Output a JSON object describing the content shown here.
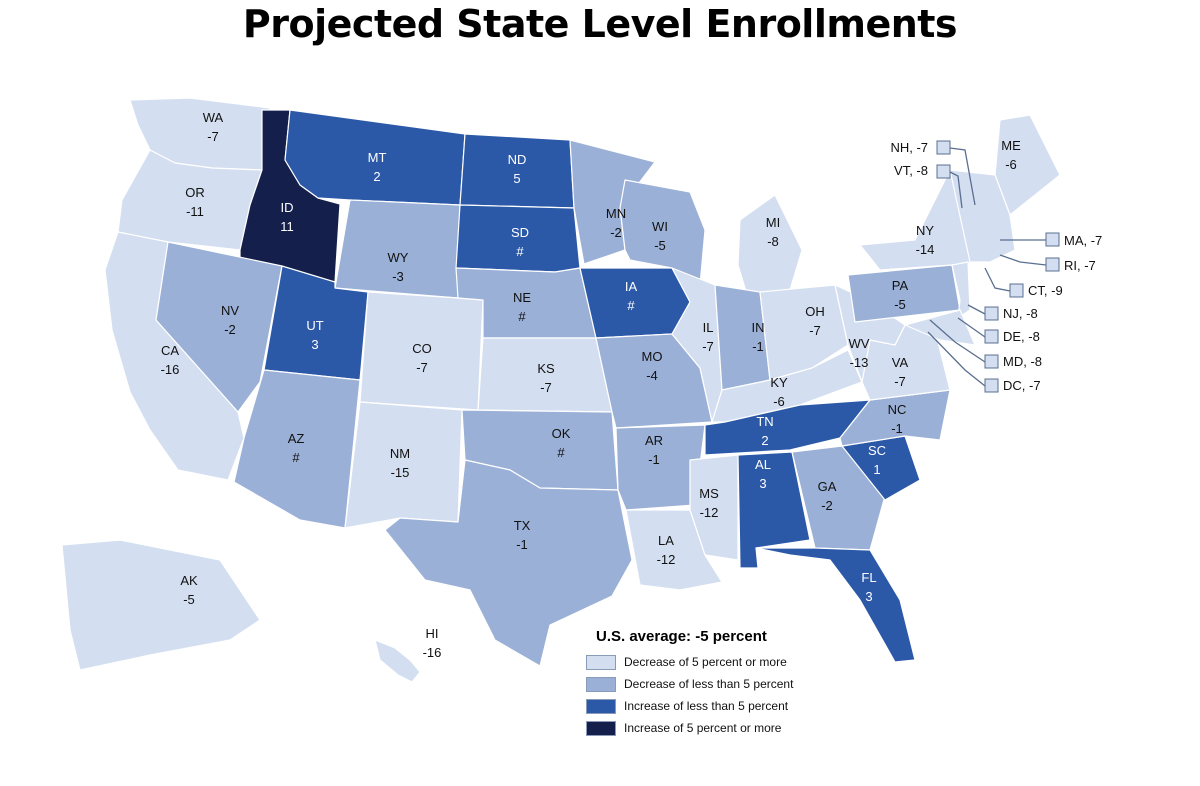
{
  "title": "Projected State Level Enrollments",
  "colors": {
    "dec5plus": "#d3def0",
    "dec_less5": "#9ab0d7",
    "inc_less5": "#2b59a8",
    "inc5plus": "#141f4b"
  },
  "legend": {
    "title": "U.S. average: -5 percent",
    "items": [
      {
        "key": "dec5plus",
        "label": "Decrease of 5 percent or more"
      },
      {
        "key": "dec_less5",
        "label": "Decrease of less than 5 percent"
      },
      {
        "key": "inc_less5",
        "label": "Increase of less than 5 percent"
      },
      {
        "key": "inc5plus",
        "label": "Increase of 5 percent or more"
      }
    ]
  },
  "states": [
    {
      "abbr": "WA",
      "value": "-7",
      "category": "dec5plus"
    },
    {
      "abbr": "OR",
      "value": "-11",
      "category": "dec5plus"
    },
    {
      "abbr": "CA",
      "value": "-16",
      "category": "dec5plus"
    },
    {
      "abbr": "ID",
      "value": "11",
      "category": "inc5plus"
    },
    {
      "abbr": "NV",
      "value": "-2",
      "category": "dec_less5"
    },
    {
      "abbr": "MT",
      "value": "2",
      "category": "inc_less5"
    },
    {
      "abbr": "WY",
      "value": "-3",
      "category": "dec_less5"
    },
    {
      "abbr": "UT",
      "value": "3",
      "category": "inc_less5"
    },
    {
      "abbr": "AZ",
      "value": "#",
      "category": "dec_less5"
    },
    {
      "abbr": "CO",
      "value": "-7",
      "category": "dec5plus"
    },
    {
      "abbr": "NM",
      "value": "-15",
      "category": "dec5plus"
    },
    {
      "abbr": "ND",
      "value": "5",
      "category": "inc_less5"
    },
    {
      "abbr": "SD",
      "value": "#",
      "category": "inc_less5"
    },
    {
      "abbr": "NE",
      "value": "#",
      "category": "dec_less5"
    },
    {
      "abbr": "KS",
      "value": "-7",
      "category": "dec5plus"
    },
    {
      "abbr": "OK",
      "value": "#",
      "category": "dec_less5"
    },
    {
      "abbr": "TX",
      "value": "-1",
      "category": "dec_less5"
    },
    {
      "abbr": "MN",
      "value": "-2",
      "category": "dec_less5"
    },
    {
      "abbr": "IA",
      "value": "#",
      "category": "inc_less5"
    },
    {
      "abbr": "MO",
      "value": "-4",
      "category": "dec_less5"
    },
    {
      "abbr": "AR",
      "value": "-1",
      "category": "dec_less5"
    },
    {
      "abbr": "LA",
      "value": "-12",
      "category": "dec5plus"
    },
    {
      "abbr": "WI",
      "value": "-5",
      "category": "dec_less5"
    },
    {
      "abbr": "IL",
      "value": "-7",
      "category": "dec5plus"
    },
    {
      "abbr": "MI",
      "value": "-8",
      "category": "dec5plus"
    },
    {
      "abbr": "IN",
      "value": "-1",
      "category": "dec_less5"
    },
    {
      "abbr": "OH",
      "value": "-7",
      "category": "dec5plus"
    },
    {
      "abbr": "KY",
      "value": "-6",
      "category": "dec5plus"
    },
    {
      "abbr": "TN",
      "value": "2",
      "category": "inc_less5"
    },
    {
      "abbr": "MS",
      "value": "-12",
      "category": "dec5plus"
    },
    {
      "abbr": "AL",
      "value": "3",
      "category": "inc_less5"
    },
    {
      "abbr": "GA",
      "value": "-2",
      "category": "dec_less5"
    },
    {
      "abbr": "FL",
      "value": "3",
      "category": "inc_less5"
    },
    {
      "abbr": "SC",
      "value": "1",
      "category": "inc_less5"
    },
    {
      "abbr": "NC",
      "value": "-1",
      "category": "dec_less5"
    },
    {
      "abbr": "VA",
      "value": "-7",
      "category": "dec5plus"
    },
    {
      "abbr": "WV",
      "value": "-13",
      "category": "dec5plus"
    },
    {
      "abbr": "PA",
      "value": "-5",
      "category": "dec_less5"
    },
    {
      "abbr": "NY",
      "value": "-14",
      "category": "dec5plus"
    },
    {
      "abbr": "ME",
      "value": "-6",
      "category": "dec5plus"
    },
    {
      "abbr": "AK",
      "value": "-5",
      "category": "dec5plus"
    },
    {
      "abbr": "HI",
      "value": "-16",
      "category": "dec5plus"
    }
  ],
  "callouts": [
    {
      "abbr": "NH",
      "value": "-7",
      "category": "dec5plus"
    },
    {
      "abbr": "VT",
      "value": "-8",
      "category": "dec5plus"
    },
    {
      "abbr": "MA",
      "value": "-7",
      "category": "dec5plus"
    },
    {
      "abbr": "RI",
      "value": "-7",
      "category": "dec5plus"
    },
    {
      "abbr": "CT",
      "value": "-9",
      "category": "dec5plus"
    },
    {
      "abbr": "NJ",
      "value": "-8",
      "category": "dec5plus"
    },
    {
      "abbr": "DE",
      "value": "-8",
      "category": "dec5plus"
    },
    {
      "abbr": "MD",
      "value": "-8",
      "category": "dec5plus"
    },
    {
      "abbr": "DC",
      "value": "-7",
      "category": "dec5plus"
    }
  ]
}
